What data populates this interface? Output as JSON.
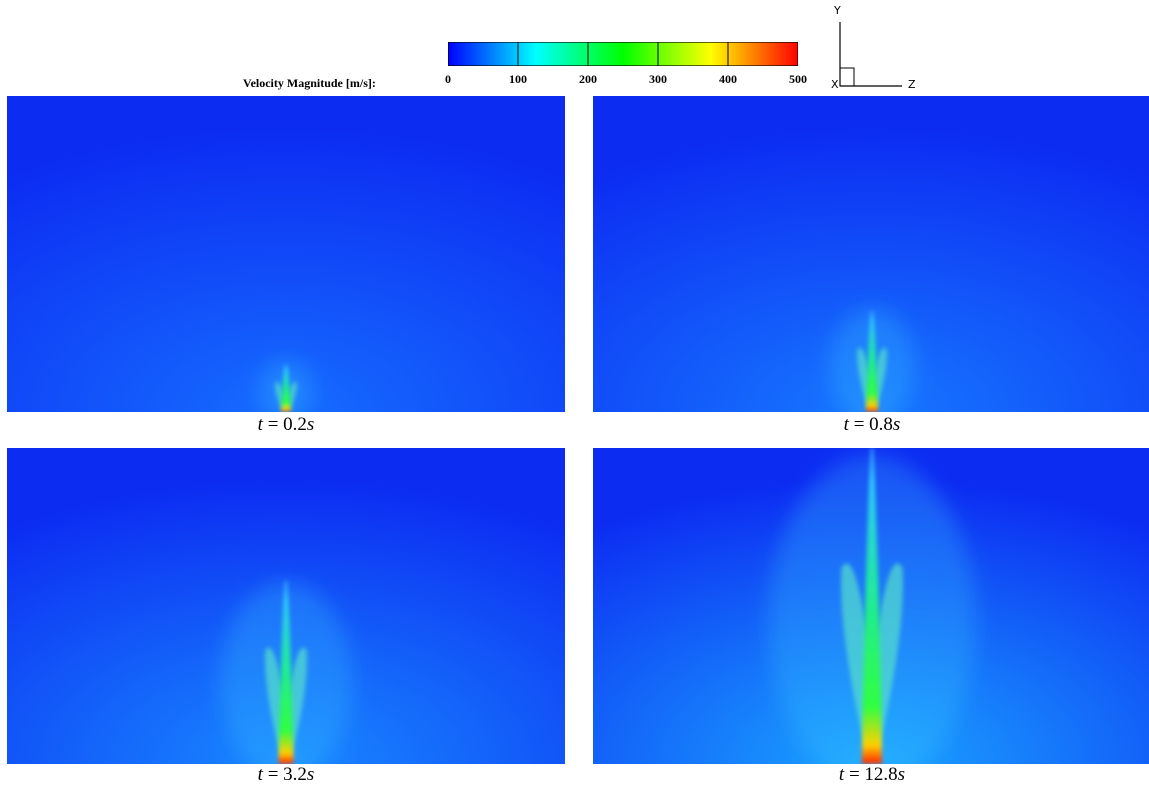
{
  "chart_data": {
    "type": "heatmap",
    "title": "",
    "colorbar": {
      "label": "Velocity Magnitude [m/s]:",
      "min": 0,
      "max": 500,
      "ticks": [
        0,
        100,
        200,
        300,
        400,
        500
      ],
      "colormap": [
        "#0000ff",
        "#00ffff",
        "#00ff00",
        "#ffff00",
        "#ff0000"
      ]
    },
    "axes_triad": {
      "vertical": "Y",
      "horizontal": "Z",
      "out_of_plane": "X"
    },
    "panels": [
      {
        "caption_var": "t",
        "caption_value": "0.2",
        "caption_unit": "s",
        "jet_height_fraction": 0.15
      },
      {
        "caption_var": "t",
        "caption_value": "0.8",
        "caption_unit": "s",
        "jet_height_fraction": 0.32
      },
      {
        "caption_var": "t",
        "caption_value": "3.2",
        "caption_unit": "s",
        "jet_height_fraction": 0.58
      },
      {
        "caption_var": "t",
        "caption_value": "12.8",
        "caption_unit": "s",
        "jet_height_fraction": 1.0
      }
    ]
  }
}
